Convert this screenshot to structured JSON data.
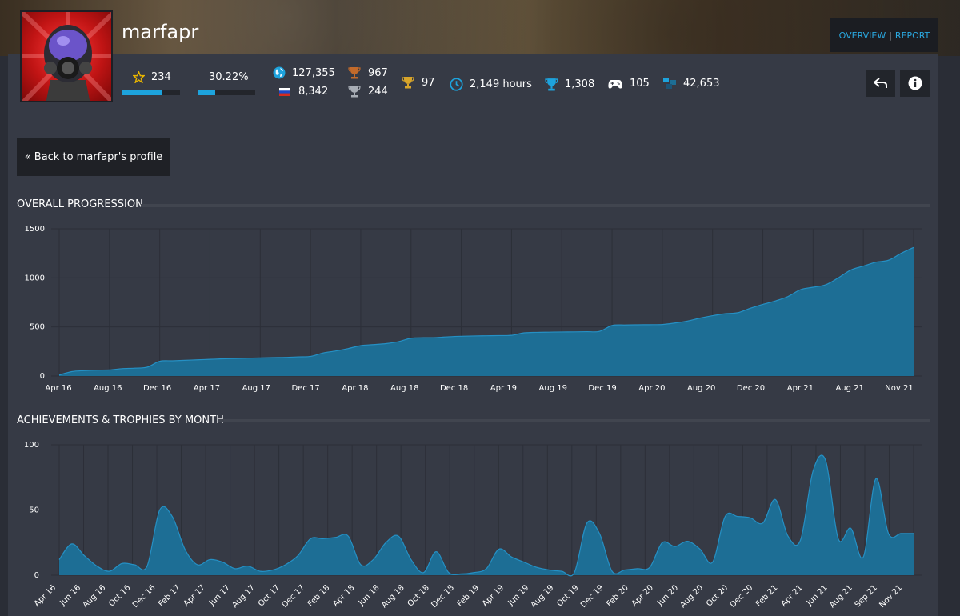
{
  "user": {
    "name": "marfapr"
  },
  "nav": {
    "overview": "OVERVIEW",
    "separator": "|",
    "report": "REPORT"
  },
  "stats": {
    "level": {
      "value": "234",
      "icon": "star-level-icon",
      "progress": 0.68
    },
    "completion": {
      "value": "30.22%",
      "progress": 0.3
    },
    "world_rank": {
      "value": "127,355",
      "icon": "globe-icon"
    },
    "country_rank": {
      "value": "8,342",
      "icon": "russia-flag-icon"
    },
    "bronze": {
      "value": "967",
      "icon": "bronze-trophy-icon"
    },
    "silver": {
      "value": "244",
      "icon": "silver-trophy-icon"
    },
    "gold": {
      "value": "97",
      "icon": "gold-trophy-icon"
    },
    "hours": {
      "value": "2,149 hours",
      "icon": "clock-icon"
    },
    "trophies": {
      "value": "1,308",
      "icon": "trophy-icon"
    },
    "games": {
      "value": "105",
      "icon": "gamepad-icon"
    },
    "points": {
      "value": "42,653",
      "icon": "points-icon"
    }
  },
  "actions": {
    "back_icon": "reply-icon",
    "info_icon": "info-icon"
  },
  "back_button": {
    "label": "« Back to marfapr's profile"
  },
  "sections": {
    "overall": "OVERALL PROGRESSION",
    "monthly": "ACHIEVEMENTS & TROPHIES BY MONTH"
  },
  "colors": {
    "accent": "#1da3dd",
    "area": "#1d6e95",
    "panel": "#363a45"
  },
  "chart_data": [
    {
      "type": "area",
      "title": "OVERALL PROGRESSION",
      "ylim": [
        0,
        1500
      ],
      "yticks": [
        "0",
        "500",
        "1000",
        "1500"
      ],
      "xticks": [
        "Apr 16",
        "Aug 16",
        "Dec 16",
        "Apr 17",
        "Aug 17",
        "Dec 17",
        "Apr 18",
        "Aug 18",
        "Dec 18",
        "Apr 19",
        "Aug 19",
        "Dec 19",
        "Apr 20",
        "Aug 20",
        "Dec 20",
        "Apr 21",
        "Aug 21",
        "Nov 21"
      ],
      "x": [
        "Apr 16",
        "May 16",
        "Jun 16",
        "Jul 16",
        "Aug 16",
        "Sep 16",
        "Oct 16",
        "Nov 16",
        "Dec 16",
        "Jan 17",
        "Feb 17",
        "Mar 17",
        "Apr 17",
        "May 17",
        "Jun 17",
        "Jul 17",
        "Aug 17",
        "Sep 17",
        "Oct 17",
        "Nov 17",
        "Dec 17",
        "Jan 18",
        "Feb 18",
        "Mar 18",
        "Apr 18",
        "May 18",
        "Jun 18",
        "Jul 18",
        "Aug 18",
        "Sep 18",
        "Oct 18",
        "Nov 18",
        "Dec 18",
        "Jan 19",
        "Feb 19",
        "Mar 19",
        "Apr 19",
        "May 19",
        "Jun 19",
        "Jul 19",
        "Aug 19",
        "Sep 19",
        "Oct 19",
        "Nov 19",
        "Dec 19",
        "Jan 20",
        "Feb 20",
        "Mar 20",
        "Apr 20",
        "May 20",
        "Jun 20",
        "Jul 20",
        "Aug 20",
        "Sep 20",
        "Oct 20",
        "Nov 20",
        "Dec 20",
        "Jan 21",
        "Feb 21",
        "Mar 21",
        "Apr 21",
        "May 21",
        "Jun 21",
        "Jul 21",
        "Aug 21",
        "Sep 21",
        "Oct 21",
        "Nov 21",
        "Dec 21"
      ],
      "values": [
        10,
        45,
        55,
        60,
        62,
        75,
        80,
        90,
        150,
        155,
        160,
        165,
        170,
        175,
        178,
        182,
        185,
        188,
        190,
        195,
        200,
        235,
        255,
        280,
        310,
        320,
        330,
        350,
        385,
        390,
        392,
        400,
        405,
        408,
        410,
        412,
        415,
        440,
        445,
        447,
        449,
        450,
        452,
        455,
        515,
        520,
        522,
        523,
        525,
        540,
        560,
        590,
        615,
        635,
        645,
        690,
        730,
        765,
        810,
        880,
        905,
        930,
        1000,
        1080,
        1120,
        1160,
        1180,
        1250,
        1310
      ]
    },
    {
      "type": "area",
      "title": "ACHIEVEMENTS & TROPHIES BY MONTH",
      "ylim": [
        0,
        100
      ],
      "yticks": [
        "0",
        "50",
        "100"
      ],
      "xticks": [
        "Apr 16",
        "Jun 16",
        "Aug 16",
        "Oct 16",
        "Dec 16",
        "Feb 17",
        "Apr 17",
        "Jun 17",
        "Aug 17",
        "Oct 17",
        "Dec 17",
        "Feb 18",
        "Apr 18",
        "Jun 18",
        "Aug 18",
        "Oct 18",
        "Dec 18",
        "Feb 19",
        "Apr 19",
        "Jun 19",
        "Aug 19",
        "Oct 19",
        "Dec 19",
        "Feb 20",
        "Apr 20",
        "Jun 20",
        "Aug 20",
        "Oct 20",
        "Dec 20",
        "Feb 21",
        "Apr 21",
        "Jun 21",
        "Aug 21",
        "Sep 21",
        "Nov 21"
      ],
      "x": [
        "Apr 16",
        "May 16",
        "Jun 16",
        "Jul 16",
        "Aug 16",
        "Sep 16",
        "Oct 16",
        "Nov 16",
        "Dec 16",
        "Jan 17",
        "Feb 17",
        "Mar 17",
        "Apr 17",
        "May 17",
        "Jun 17",
        "Jul 17",
        "Aug 17",
        "Sep 17",
        "Oct 17",
        "Nov 17",
        "Dec 17",
        "Jan 18",
        "Feb 18",
        "Mar 18",
        "Apr 18",
        "May 18",
        "Jun 18",
        "Jul 18",
        "Aug 18",
        "Sep 18",
        "Oct 18",
        "Nov 18",
        "Dec 18",
        "Jan 19",
        "Feb 19",
        "Mar 19",
        "Apr 19",
        "May 19",
        "Jun 19",
        "Jul 19",
        "Aug 19",
        "Sep 19",
        "Oct 19",
        "Nov 19",
        "Dec 19",
        "Jan 20",
        "Feb 20",
        "Mar 20",
        "Apr 20",
        "May 20",
        "Jun 20",
        "Jul 20",
        "Aug 20",
        "Sep 20",
        "Oct 20",
        "Nov 20",
        "Dec 20",
        "Jan 21",
        "Feb 21",
        "Mar 21",
        "Apr 21",
        "May 21",
        "Jun 21",
        "Jul 21",
        "Aug 21",
        "Sep 21",
        "Oct 21",
        "Nov 21",
        "Dec 21"
      ],
      "values": [
        12,
        24,
        15,
        7,
        3,
        9,
        8,
        7,
        50,
        45,
        20,
        8,
        12,
        10,
        5,
        7,
        3,
        4,
        8,
        15,
        28,
        28,
        29,
        30,
        8,
        12,
        25,
        30,
        12,
        2,
        18,
        2,
        1,
        2,
        5,
        20,
        14,
        10,
        6,
        4,
        3,
        2,
        40,
        32,
        3,
        4,
        5,
        6,
        25,
        22,
        26,
        20,
        10,
        45,
        45,
        44,
        40,
        58,
        30,
        27,
        80,
        88,
        28,
        36,
        14,
        74,
        32,
        32,
        32
      ]
    }
  ]
}
